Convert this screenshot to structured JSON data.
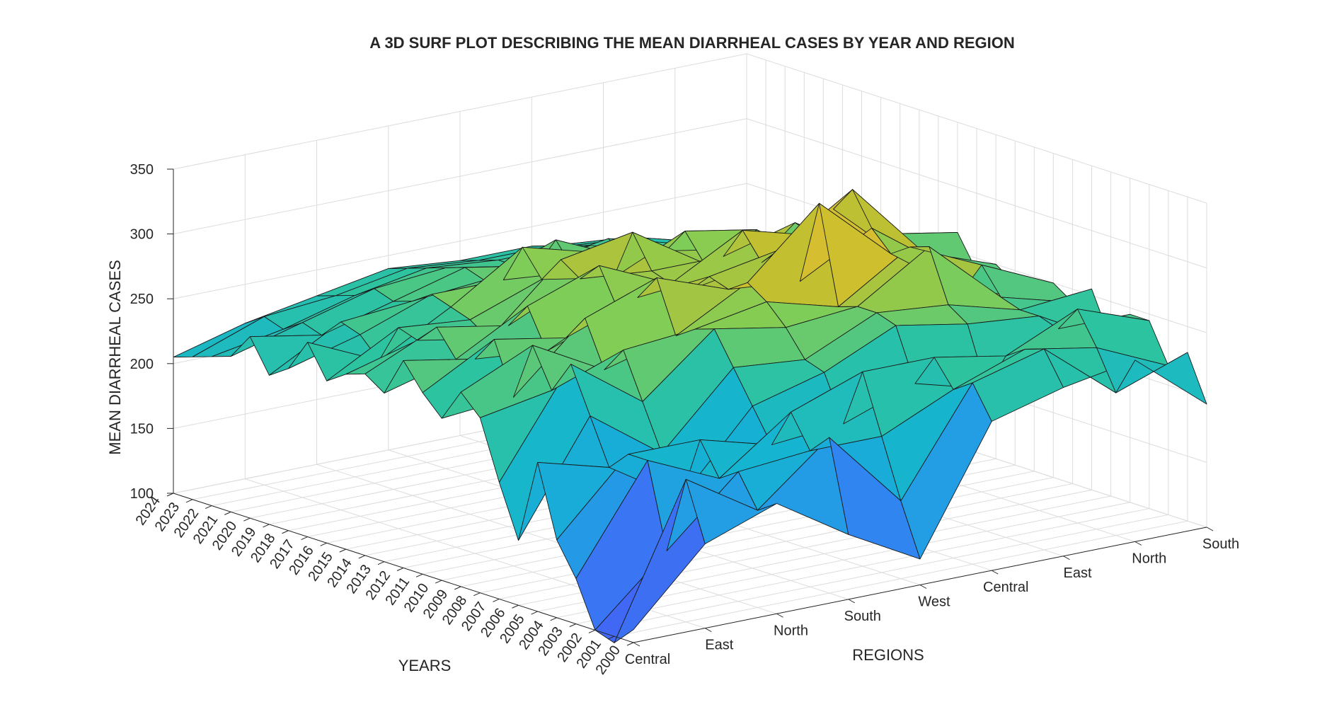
{
  "chart_data": {
    "type": "surface",
    "title": "A 3D SURF PLOT DESCRIBING THE MEAN DIARRHEAL CASES BY YEAR AND REGION",
    "xlabel": "REGIONS",
    "ylabel": "YEARS",
    "zlabel": "MEAN DIARRHEAL CASES",
    "x_ticks": [
      "Central",
      "East",
      "North",
      "South",
      "West",
      "Central",
      "East",
      "North",
      "South"
    ],
    "y_ticks": [
      "2000",
      "2001",
      "2002",
      "2003",
      "2004",
      "2005",
      "2006",
      "2007",
      "2008",
      "2009",
      "2010",
      "2011",
      "2012",
      "2013",
      "2014",
      "2015",
      "2016",
      "2017",
      "2018",
      "2019",
      "2020",
      "2021",
      "2022",
      "2023",
      "2024"
    ],
    "z_ticks": [
      "100",
      "150",
      "200",
      "250",
      "300",
      "350"
    ],
    "zlim": [
      100,
      350
    ],
    "colormap": "parula",
    "grid": true,
    "z_values": [
      [
        110,
        165,
        185,
        150,
        120,
        215,
        230,
        240,
        195
      ],
      [
        95,
        210,
        175,
        220,
        160,
        240,
        255,
        210,
        230
      ],
      [
        100,
        150,
        200,
        205,
        205,
        230,
        250,
        240,
        215
      ],
      [
        135,
        215,
        190,
        230,
        250,
        250,
        240,
        265,
        245
      ],
      [
        160,
        215,
        215,
        200,
        205,
        225,
        210,
        245,
        245
      ],
      [
        215,
        200,
        165,
        225,
        240,
        265,
        255,
        250,
        220
      ],
      [
        150,
        235,
        195,
        250,
        245,
        270,
        265,
        250,
        255
      ],
      [
        190,
        270,
        230,
        275,
        265,
        270,
        305,
        255,
        240
      ],
      [
        235,
        245,
        265,
        270,
        280,
        265,
        300,
        275,
        250
      ],
      [
        250,
        275,
        245,
        260,
        290,
        340,
        290,
        250,
        235
      ],
      [
        225,
        230,
        280,
        300,
        280,
        275,
        305,
        265,
        240
      ],
      [
        240,
        270,
        260,
        280,
        285,
        295,
        330,
        270,
        250
      ],
      [
        260,
        250,
        245,
        265,
        270,
        280,
        310,
        260,
        240
      ],
      [
        230,
        245,
        275,
        295,
        270,
        300,
        285,
        275,
        265
      ],
      [
        240,
        265,
        255,
        280,
        275,
        275,
        290,
        255,
        250
      ],
      [
        235,
        250,
        240,
        290,
        300,
        265,
        270,
        240,
        225
      ],
      [
        225,
        255,
        250,
        270,
        260,
        285,
        275,
        235,
        220
      ],
      [
        250,
        225,
        255,
        290,
        275,
        265,
        255,
        250,
        245
      ],
      [
        225,
        240,
        260,
        260,
        255,
        260,
        240,
        245,
        230
      ],
      [
        215,
        245,
        250,
        255,
        275,
        250,
        235,
        225,
        225
      ],
      [
        240,
        230,
        245,
        260,
        250,
        260,
        245,
        235,
        220
      ],
      [
        220,
        235,
        250,
        255,
        245,
        250,
        235,
        230,
        215
      ],
      [
        215,
        225,
        240,
        250,
        245,
        245,
        240,
        225,
        215
      ],
      [
        210,
        230,
        235,
        245,
        240,
        240,
        235,
        220,
        210
      ],
      [
        205,
        220,
        230,
        240,
        235,
        235,
        225,
        215,
        205
      ]
    ]
  }
}
